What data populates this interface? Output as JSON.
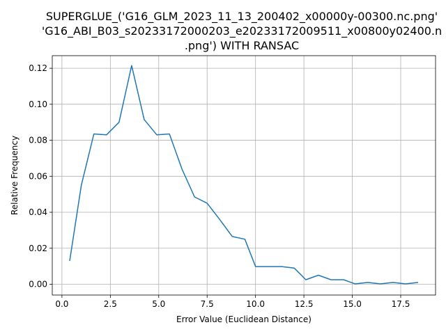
{
  "chart_data": {
    "type": "line",
    "title_lines": [
      "SUPERGLUE_('G16_GLM_2023_11_13_200402_x00000y-00300.nc.png'",
      "'G16_ABI_B03_s20233172000203_e20233172009511_x00800y02400.n",
      ".png') WITH RANSAC"
    ],
    "xlabel": "Error Value (Euclidean Distance)",
    "ylabel": "Relative Frequency",
    "xlim": [
      -0.5,
      19.3
    ],
    "ylim": [
      -0.006,
      0.127
    ],
    "xticks": [
      0.0,
      2.5,
      5.0,
      7.5,
      10.0,
      12.5,
      15.0,
      17.5
    ],
    "xtick_labels": [
      "0.0",
      "2.5",
      "5.0",
      "7.5",
      "10.0",
      "12.5",
      "15.0",
      "17.5"
    ],
    "yticks": [
      0.0,
      0.02,
      0.04,
      0.06,
      0.08,
      0.1,
      0.12
    ],
    "ytick_labels": [
      "0.00",
      "0.02",
      "0.04",
      "0.06",
      "0.08",
      "0.10",
      "0.12"
    ],
    "grid": true,
    "line_color": "#1f77b4",
    "series": [
      {
        "x": [
          0.4,
          1.0,
          1.65,
          2.3,
          2.95,
          3.6,
          4.25,
          4.9,
          5.55,
          6.2,
          6.85,
          7.5,
          8.15,
          8.8,
          9.45,
          10.0,
          10.7,
          11.35,
          12.0,
          12.6,
          13.25,
          13.9,
          14.55,
          15.15,
          15.8,
          16.45,
          17.1,
          17.75,
          18.4
        ],
        "y": [
          0.013,
          0.055,
          0.0835,
          0.083,
          0.09,
          0.1215,
          0.0915,
          0.083,
          0.0835,
          0.064,
          0.0485,
          0.045,
          0.036,
          0.0265,
          0.025,
          0.0098,
          0.0098,
          0.0098,
          0.009,
          0.0025,
          0.005,
          0.0025,
          0.0025,
          0.0002,
          0.001,
          0.0002,
          0.001,
          0.0002,
          0.001
        ]
      }
    ]
  }
}
